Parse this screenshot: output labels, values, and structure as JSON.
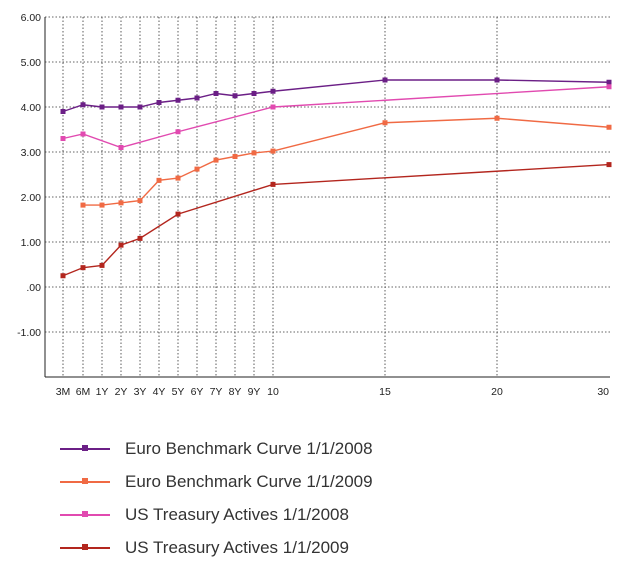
{
  "chart_data": {
    "type": "line",
    "title": "",
    "xlabel": "",
    "ylabel": "",
    "x_tick_labels": [
      "3M",
      "6M",
      "1Y",
      "2Y",
      "3Y",
      "4Y",
      "5Y",
      "6Y",
      "7Y",
      "8Y",
      "9Y",
      "10",
      "15",
      "20",
      "30"
    ],
    "y_tick_labels": [
      "6.00",
      "5.00",
      "4.00",
      "3.00",
      "2.00",
      "1.00",
      ".00",
      "-1.00"
    ],
    "ylim": [
      -2,
      6
    ],
    "grid": true,
    "legend_position": "bottom",
    "series": [
      {
        "name": "Euro Benchmark Curve 1/1/2008",
        "color": "#6b1f86",
        "points": [
          [
            "3M",
            3.9
          ],
          [
            "6M",
            4.05
          ],
          [
            "1Y",
            4.0
          ],
          [
            "2Y",
            4.0
          ],
          [
            "3Y",
            4.0
          ],
          [
            "4Y",
            4.1
          ],
          [
            "5Y",
            4.15
          ],
          [
            "6Y",
            4.2
          ],
          [
            "7Y",
            4.3
          ],
          [
            "8Y",
            4.25
          ],
          [
            "9Y",
            4.3
          ],
          [
            "10",
            4.35
          ],
          [
            "15",
            4.6
          ],
          [
            "20",
            4.6
          ],
          [
            "30",
            4.55
          ]
        ]
      },
      {
        "name": "Euro Benchmark Curve 1/1/2009",
        "color": "#f06a44",
        "points": [
          [
            "6M",
            1.82
          ],
          [
            "1Y",
            1.82
          ],
          [
            "2Y",
            1.87
          ],
          [
            "3Y",
            1.92
          ],
          [
            "4Y",
            2.37
          ],
          [
            "5Y",
            2.42
          ],
          [
            "6Y",
            2.62
          ],
          [
            "7Y",
            2.82
          ],
          [
            "8Y",
            2.9
          ],
          [
            "9Y",
            2.98
          ],
          [
            "10",
            3.02
          ],
          [
            "15",
            3.65
          ],
          [
            "20",
            3.75
          ],
          [
            "30",
            3.55
          ]
        ]
      },
      {
        "name": "US Treasury Actives 1/1/2008",
        "color": "#e14ab0",
        "points": [
          [
            "3M",
            3.3
          ],
          [
            "6M",
            3.4
          ],
          [
            "2Y",
            3.1
          ],
          [
            "5Y",
            3.45
          ],
          [
            "10",
            4.0
          ],
          [
            "30",
            4.45
          ]
        ]
      },
      {
        "name": "US Treasury Actives 1/1/2009",
        "color": "#b3261e",
        "points": [
          [
            "3M",
            0.25
          ],
          [
            "6M",
            0.43
          ],
          [
            "1Y",
            0.48
          ],
          [
            "2Y",
            0.93
          ],
          [
            "3Y",
            1.08
          ],
          [
            "5Y",
            1.62
          ],
          [
            "10",
            2.28
          ],
          [
            "30",
            2.72
          ]
        ]
      }
    ]
  }
}
